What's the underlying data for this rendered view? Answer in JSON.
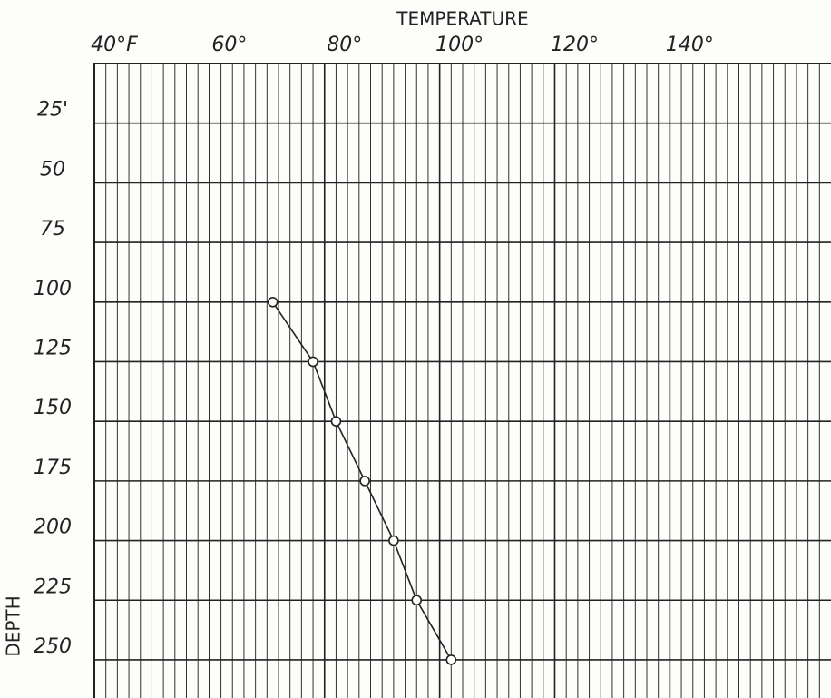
{
  "chart_data": {
    "type": "line",
    "title": "TEMPERATURE",
    "y_label": "DEPTH",
    "series": [
      {
        "color": "#222222",
        "x": [
          71,
          78,
          82,
          87,
          92,
          96,
          102
        ],
        "values": [
          100,
          125,
          150,
          175,
          200,
          225,
          250
        ]
      }
    ],
    "xlim": [
      40,
      168
    ],
    "xticks": [
      {
        "value": 40,
        "label": "40°F"
      },
      {
        "value": 60,
        "label": "60°"
      },
      {
        "value": 80,
        "label": "80°"
      },
      {
        "value": 100,
        "label": "100°"
      },
      {
        "value": 120,
        "label": "120°"
      },
      {
        "value": 140,
        "label": "140°"
      }
    ],
    "xminorticks": [
      42,
      44,
      46,
      48,
      50,
      52,
      54,
      56,
      58,
      60,
      62,
      64,
      66,
      68,
      70,
      72,
      74,
      76,
      78,
      80,
      82,
      84,
      86,
      88,
      90,
      92,
      94,
      96,
      98,
      100,
      102,
      104,
      106,
      108,
      110,
      112,
      114,
      116,
      118,
      120,
      122,
      124,
      126,
      128,
      130,
      132,
      134,
      136,
      138,
      140,
      142,
      144,
      146,
      148,
      150,
      152,
      154,
      156,
      158,
      160,
      162,
      164,
      166
    ],
    "ylim": [
      0,
      266
    ],
    "y_inverted": true,
    "yticks": [
      {
        "value": 25,
        "label": "25'"
      },
      50,
      75,
      100,
      125,
      150,
      175,
      200,
      225,
      250
    ],
    "grid": true
  }
}
